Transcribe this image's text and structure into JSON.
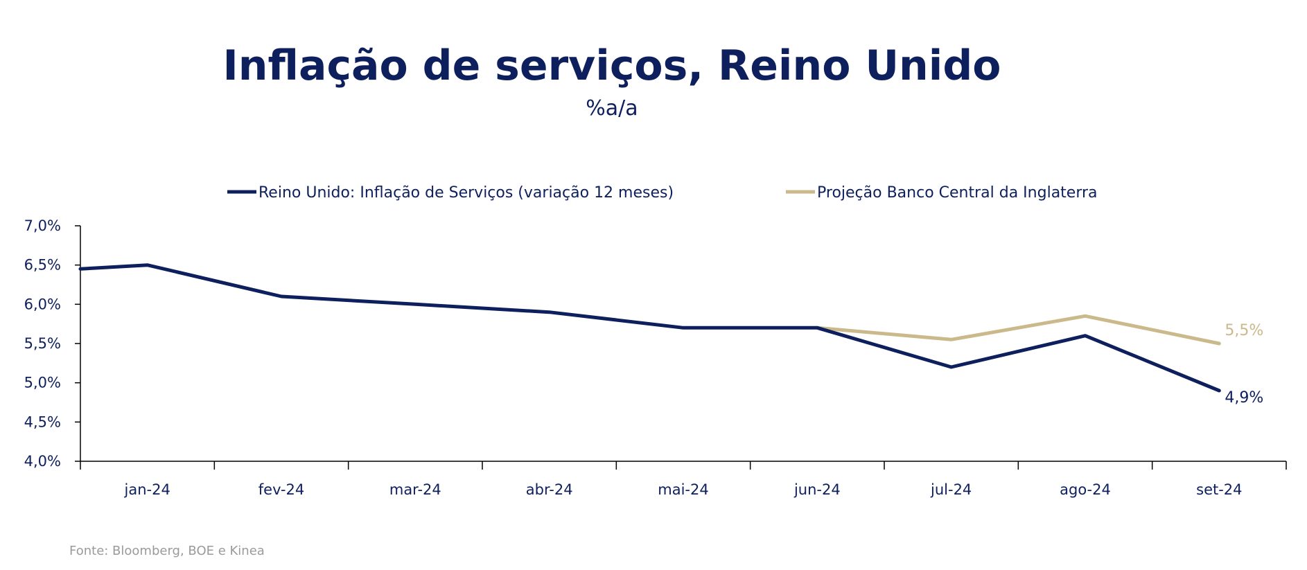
{
  "colors": {
    "navy": "#0d1f5c",
    "gold": "#cbb98c",
    "source_gray": "#9a9a9a"
  },
  "chart_data": {
    "type": "line",
    "title": "Inflação de serviços, Reino Unido",
    "subtitle": "%a/a",
    "categories": [
      "jan-24",
      "fev-24",
      "mar-24",
      "abr-24",
      "mai-24",
      "jun-24",
      "jul-24",
      "ago-24",
      "set-24"
    ],
    "y_ticks": [
      "4,0%",
      "4,5%",
      "5,0%",
      "5,5%",
      "6,0%",
      "6,5%",
      "7,0%"
    ],
    "ylim": [
      4.0,
      7.0
    ],
    "series": [
      {
        "name": "Reino Unido: Inflação de Serviços (variação 12 meses)",
        "color": "#0d1f5c",
        "x": [
          -0.5,
          0,
          1,
          2,
          3,
          4,
          5,
          6,
          7,
          8
        ],
        "values": [
          6.45,
          6.5,
          6.1,
          6.0,
          5.9,
          5.7,
          5.7,
          5.2,
          5.6,
          4.9
        ],
        "end_label": "4,9%"
      },
      {
        "name": "Projeção Banco Central da Inglaterra",
        "color": "#cbb98c",
        "x": [
          5,
          6,
          7,
          8
        ],
        "values": [
          5.7,
          5.55,
          5.85,
          5.5
        ],
        "end_label": "5,5%"
      }
    ],
    "legend_position": "top",
    "grid": false
  },
  "source": "Fonte: Bloomberg, BOE e Kinea"
}
